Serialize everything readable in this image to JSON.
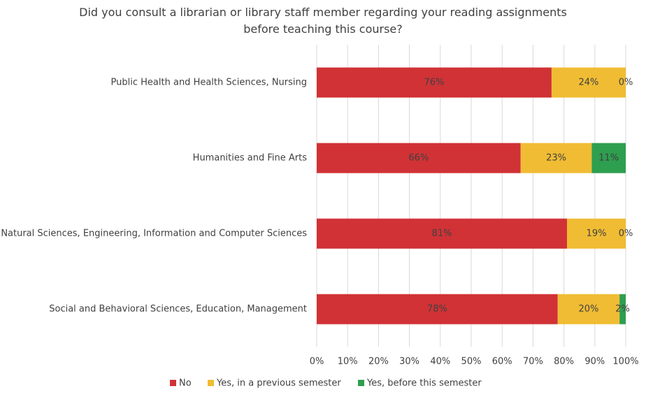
{
  "chart_data": {
    "type": "stacked-bar-horizontal",
    "title": "Did you consult a librarian or library staff member regarding your reading assignments before teaching this course?",
    "categories": [
      "Public Health and Health Sciences, Nursing",
      "Humanities and Fine Arts",
      "Natural Sciences, Engineering, Information and Computer Sciences",
      "Social and Behavioral Sciences, Education, Management"
    ],
    "series": [
      {
        "name": "No",
        "color": "#d03236",
        "values": [
          76,
          66,
          81,
          78
        ],
        "value_labels": [
          "76%",
          "66%",
          "81%",
          "78%"
        ]
      },
      {
        "name": "Yes, in a previous semester",
        "color": "#f0bc33",
        "values": [
          24,
          23,
          19,
          20
        ],
        "value_labels": [
          "24%",
          "23%",
          "19%",
          "20%"
        ]
      },
      {
        "name": "Yes, before this semester",
        "color": "#2e9e4f",
        "values": [
          0,
          11,
          0,
          2
        ],
        "value_labels": [
          "0%",
          "11%",
          "0%",
          "2%"
        ]
      }
    ],
    "xlim": [
      0,
      100
    ],
    "xticks": [
      {
        "value": 0,
        "label": "0%"
      },
      {
        "value": 10,
        "label": "10%"
      },
      {
        "value": 20,
        "label": "20%"
      },
      {
        "value": 30,
        "label": "30%"
      },
      {
        "value": 40,
        "label": "40%"
      },
      {
        "value": 50,
        "label": "50%"
      },
      {
        "value": 60,
        "label": "60%"
      },
      {
        "value": 70,
        "label": "70%"
      },
      {
        "value": 80,
        "label": "80%"
      },
      {
        "value": 90,
        "label": "90%"
      },
      {
        "value": 100,
        "label": "100%"
      }
    ],
    "grid": true,
    "legend": "bottom"
  }
}
